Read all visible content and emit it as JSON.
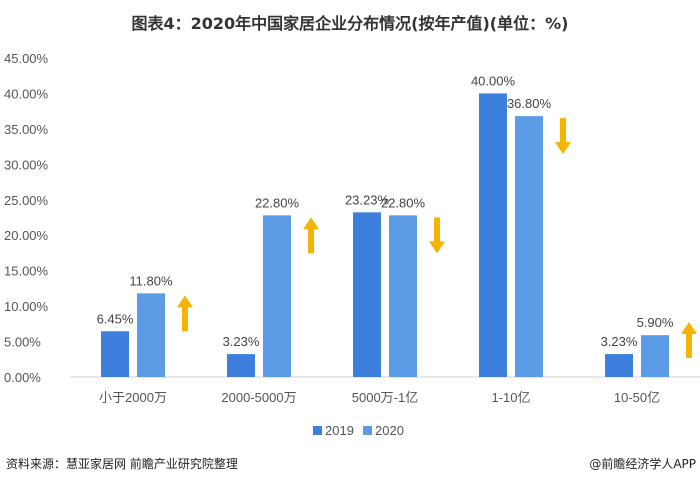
{
  "chart_data": {
    "type": "bar",
    "title": "图表4：2020年中国家居企业分布情况(按年产值)(单位：%)",
    "categories": [
      "小于2000万",
      "2000-5000万",
      "5000万-1亿",
      "1-10亿",
      "10-50亿"
    ],
    "series": [
      {
        "name": "2019",
        "values": [
          6.45,
          3.23,
          23.23,
          40.0,
          3.23
        ],
        "labels": [
          "6.45%",
          "3.23%",
          "23.23%",
          "40.00%",
          "3.23%"
        ],
        "color": "#3c7fdc"
      },
      {
        "name": "2020",
        "values": [
          11.8,
          22.8,
          22.8,
          36.8,
          5.9
        ],
        "labels": [
          "11.80%",
          "22.80%",
          "22.80%",
          "36.80%",
          "5.90%"
        ],
        "color": "#5c9be6"
      }
    ],
    "trend_arrows": [
      "up",
      "up",
      "down",
      "down",
      "up"
    ],
    "arrow_color": "#f5b400",
    "ylim": [
      0,
      45
    ],
    "yticks": [
      "0.00%",
      "5.00%",
      "10.00%",
      "15.00%",
      "20.00%",
      "25.00%",
      "30.00%",
      "35.00%",
      "40.00%",
      "45.00%"
    ],
    "grid": false,
    "legend_position": "bottom"
  },
  "footer": {
    "source": "资料来源：慧亚家居网 前瞻产业研究院整理",
    "credit": "@前瞻经济学人APP"
  }
}
